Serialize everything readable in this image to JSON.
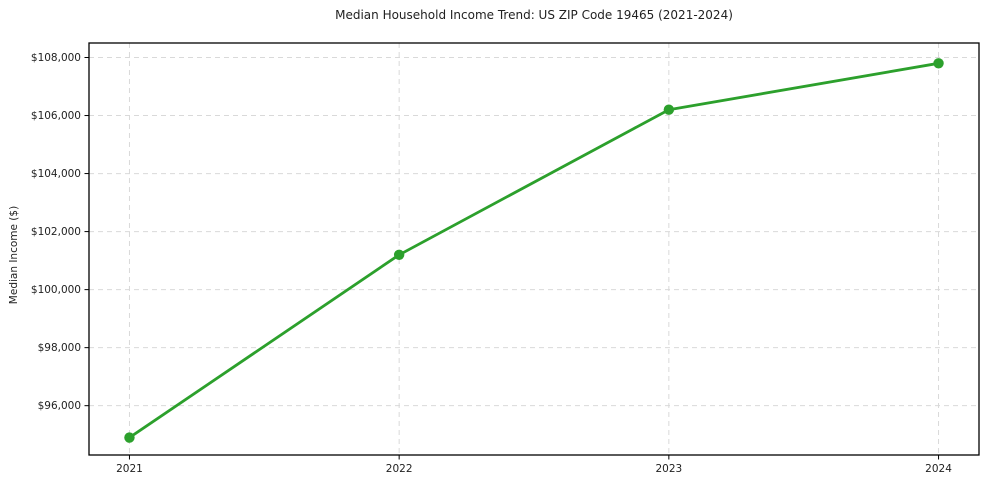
{
  "chart_data": {
    "type": "line",
    "title": "Median Household Income Trend: US ZIP Code 19465 (2021-2024)",
    "xlabel": "",
    "ylabel": "Median Income ($)",
    "x": [
      2021,
      2022,
      2023,
      2024
    ],
    "x_tick_labels": [
      "2021",
      "2022",
      "2023",
      "2024"
    ],
    "series": [
      {
        "name": "Median Household Income",
        "values": [
          94900,
          101200,
          106200,
          107800
        ]
      }
    ],
    "y_ticks": [
      {
        "value": 96000,
        "label": "$96,000"
      },
      {
        "value": 98000,
        "label": "$98,000"
      },
      {
        "value": 100000,
        "label": "$100,000"
      },
      {
        "value": 102000,
        "label": "$102,000"
      },
      {
        "value": 104000,
        "label": "$104,000"
      },
      {
        "value": 106000,
        "label": "$106,000"
      },
      {
        "value": 108000,
        "label": "$108,000"
      }
    ],
    "xlim": [
      2020.85,
      2024.15
    ],
    "ylim": [
      94300,
      108500
    ],
    "grid": true,
    "grid_style": "dashed",
    "legend_position": "none",
    "colors": {
      "line": "#2ca02c",
      "marker": "#2ca02c",
      "grid": "#d9d9d9",
      "spine": "#000000",
      "tick": "#000000",
      "background": "#ffffff"
    }
  }
}
